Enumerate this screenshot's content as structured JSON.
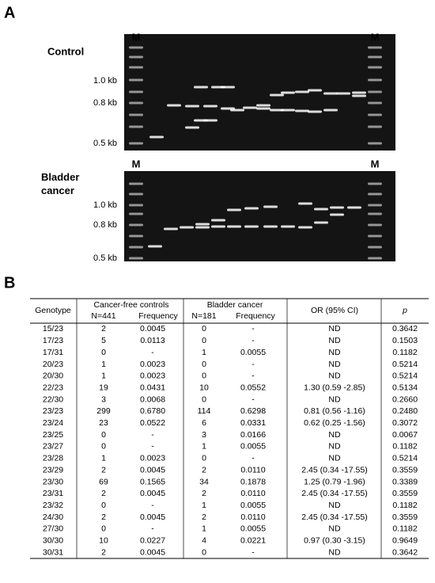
{
  "panel_a": {
    "label": "A",
    "control": {
      "title": "Control",
      "marker_left": "M",
      "marker_right": "M",
      "sizes": [
        "1.0 kb",
        "0.8 kb",
        "0.5 kb"
      ]
    },
    "cancer": {
      "title": "Bladder cancer",
      "marker_left": "M",
      "marker_right": "M",
      "sizes": [
        "1.0 kb",
        "0.8 kb",
        "0.5 kb"
      ]
    }
  },
  "panel_b": {
    "label": "B",
    "table": {
      "header": {
        "genotype": "Genotype",
        "controls": "Cancer-free controls",
        "controls_n": "N=441",
        "controls_freq": "Frequency",
        "cancer": "Bladder cancer",
        "cancer_n": "N=181",
        "cancer_freq": "Frequency",
        "or": "OR (95% CI)",
        "p": "p"
      },
      "rows": [
        [
          "15/23",
          "2",
          "0.0045",
          "0",
          "-",
          "ND",
          "0.3642"
        ],
        [
          "17/23",
          "5",
          "0.0113",
          "0",
          "-",
          "ND",
          "0.1503"
        ],
        [
          "17/31",
          "0",
          "-",
          "1",
          "0.0055",
          "ND",
          "0.1182"
        ],
        [
          "20/23",
          "1",
          "0.0023",
          "0",
          "-",
          "ND",
          "0.5214"
        ],
        [
          "20/30",
          "1",
          "0.0023",
          "0",
          "-",
          "ND",
          "0.5214"
        ],
        [
          "22/23",
          "19",
          "0.0431",
          "10",
          "0.0552",
          "1.30 (0.59 -2.85)",
          "0.5134"
        ],
        [
          "22/30",
          "3",
          "0.0068",
          "0",
          "-",
          "ND",
          "0.2660"
        ],
        [
          "23/23",
          "299",
          "0.6780",
          "114",
          "0.6298",
          "0.81 (0.56 -1.16)",
          "0.2480"
        ],
        [
          "23/24",
          "23",
          "0.0522",
          "6",
          "0.0331",
          "0.62 (0.25 -1.56)",
          "0.3072"
        ],
        [
          "23/25",
          "0",
          "-",
          "3",
          "0.0166",
          "ND",
          "0.0067"
        ],
        [
          "23/27",
          "0",
          "-",
          "1",
          "0.0055",
          "ND",
          "0.1182"
        ],
        [
          "23/28",
          "1",
          "0.0023",
          "0",
          "-",
          "ND",
          "0.5214"
        ],
        [
          "23/29",
          "2",
          "0.0045",
          "2",
          "0.0110",
          "2.45 (0.34 -17.55)",
          "0.3559"
        ],
        [
          "23/30",
          "69",
          "0.1565",
          "34",
          "0.1878",
          "1.25 (0.79 -1.96)",
          "0.3389"
        ],
        [
          "23/31",
          "2",
          "0.0045",
          "2",
          "0.0110",
          "2.45 (0.34 -17.55)",
          "0.3559"
        ],
        [
          "23/32",
          "0",
          "-",
          "1",
          "0.0055",
          "ND",
          "0.1182"
        ],
        [
          "24/30",
          "2",
          "0.0045",
          "2",
          "0.0110",
          "2.45 (0.34 -17.55)",
          "0.3559"
        ],
        [
          "27/30",
          "0",
          "-",
          "1",
          "0.0055",
          "ND",
          "0.1182"
        ],
        [
          "30/30",
          "10",
          "0.0227",
          "4",
          "0.0221",
          "0.97 (0.30 -3.15)",
          "0.9649"
        ],
        [
          "30/31",
          "2",
          "0.0045",
          "0",
          "-",
          "ND",
          "0.3642"
        ]
      ]
    }
  }
}
